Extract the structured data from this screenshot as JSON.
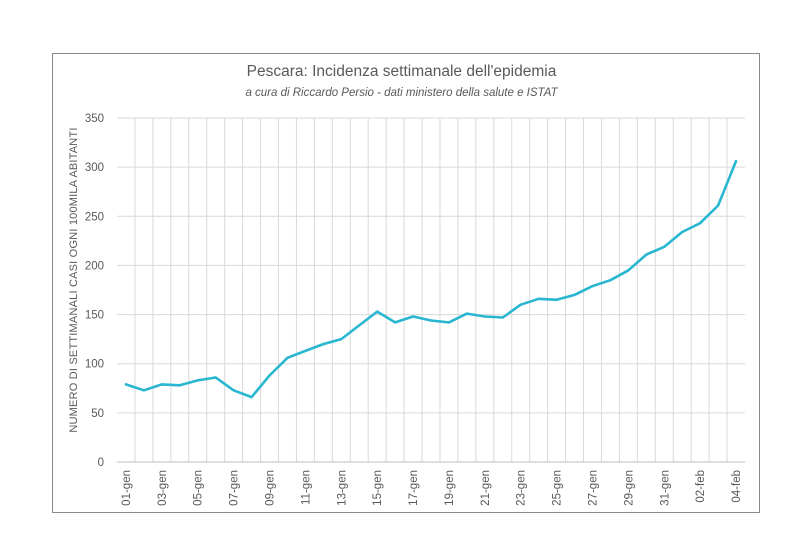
{
  "chart_data": {
    "type": "line",
    "title": "Pescara: Incidenza settimanale dell'epidemia",
    "subtitle": "a cura di Riccardo Persio - dati ministero della salute e ISTAT",
    "xlabel": "",
    "ylabel": "NUMERO DI SETTIMANALI CASI OGNI 100MILA ABITANTI",
    "ylim": [
      0,
      350
    ],
    "yticks": [
      0,
      50,
      100,
      150,
      200,
      250,
      300,
      350
    ],
    "xtick_labels": [
      "01-gen",
      "03-gen",
      "05-gen",
      "07-gen",
      "09-gen",
      "11-gen",
      "13-gen",
      "15-gen",
      "17-gen",
      "19-gen",
      "21-gen",
      "23-gen",
      "25-gen",
      "27-gen",
      "29-gen",
      "31-gen",
      "02-feb",
      "04-feb"
    ],
    "grid": true,
    "line_color": "#29b6d1",
    "x": [
      "01-gen",
      "02-gen",
      "03-gen",
      "04-gen",
      "05-gen",
      "06-gen",
      "07-gen",
      "08-gen",
      "09-gen",
      "10-gen",
      "11-gen",
      "12-gen",
      "13-gen",
      "14-gen",
      "15-gen",
      "16-gen",
      "17-gen",
      "18-gen",
      "19-gen",
      "20-gen",
      "21-gen",
      "22-gen",
      "23-gen",
      "24-gen",
      "25-gen",
      "26-gen",
      "27-gen",
      "28-gen",
      "29-gen",
      "30-gen",
      "31-gen",
      "01-feb",
      "02-feb",
      "03-feb",
      "04-feb"
    ],
    "series": [
      {
        "name": "Incidenza settimanale",
        "values": [
          79,
          73,
          79,
          78,
          83,
          86,
          73,
          66,
          88,
          106,
          113,
          120,
          125,
          139,
          153,
          142,
          148,
          144,
          142,
          151,
          148,
          147,
          160,
          166,
          165,
          170,
          179,
          185,
          195,
          211,
          219,
          234,
          243,
          261,
          306
        ]
      }
    ]
  }
}
